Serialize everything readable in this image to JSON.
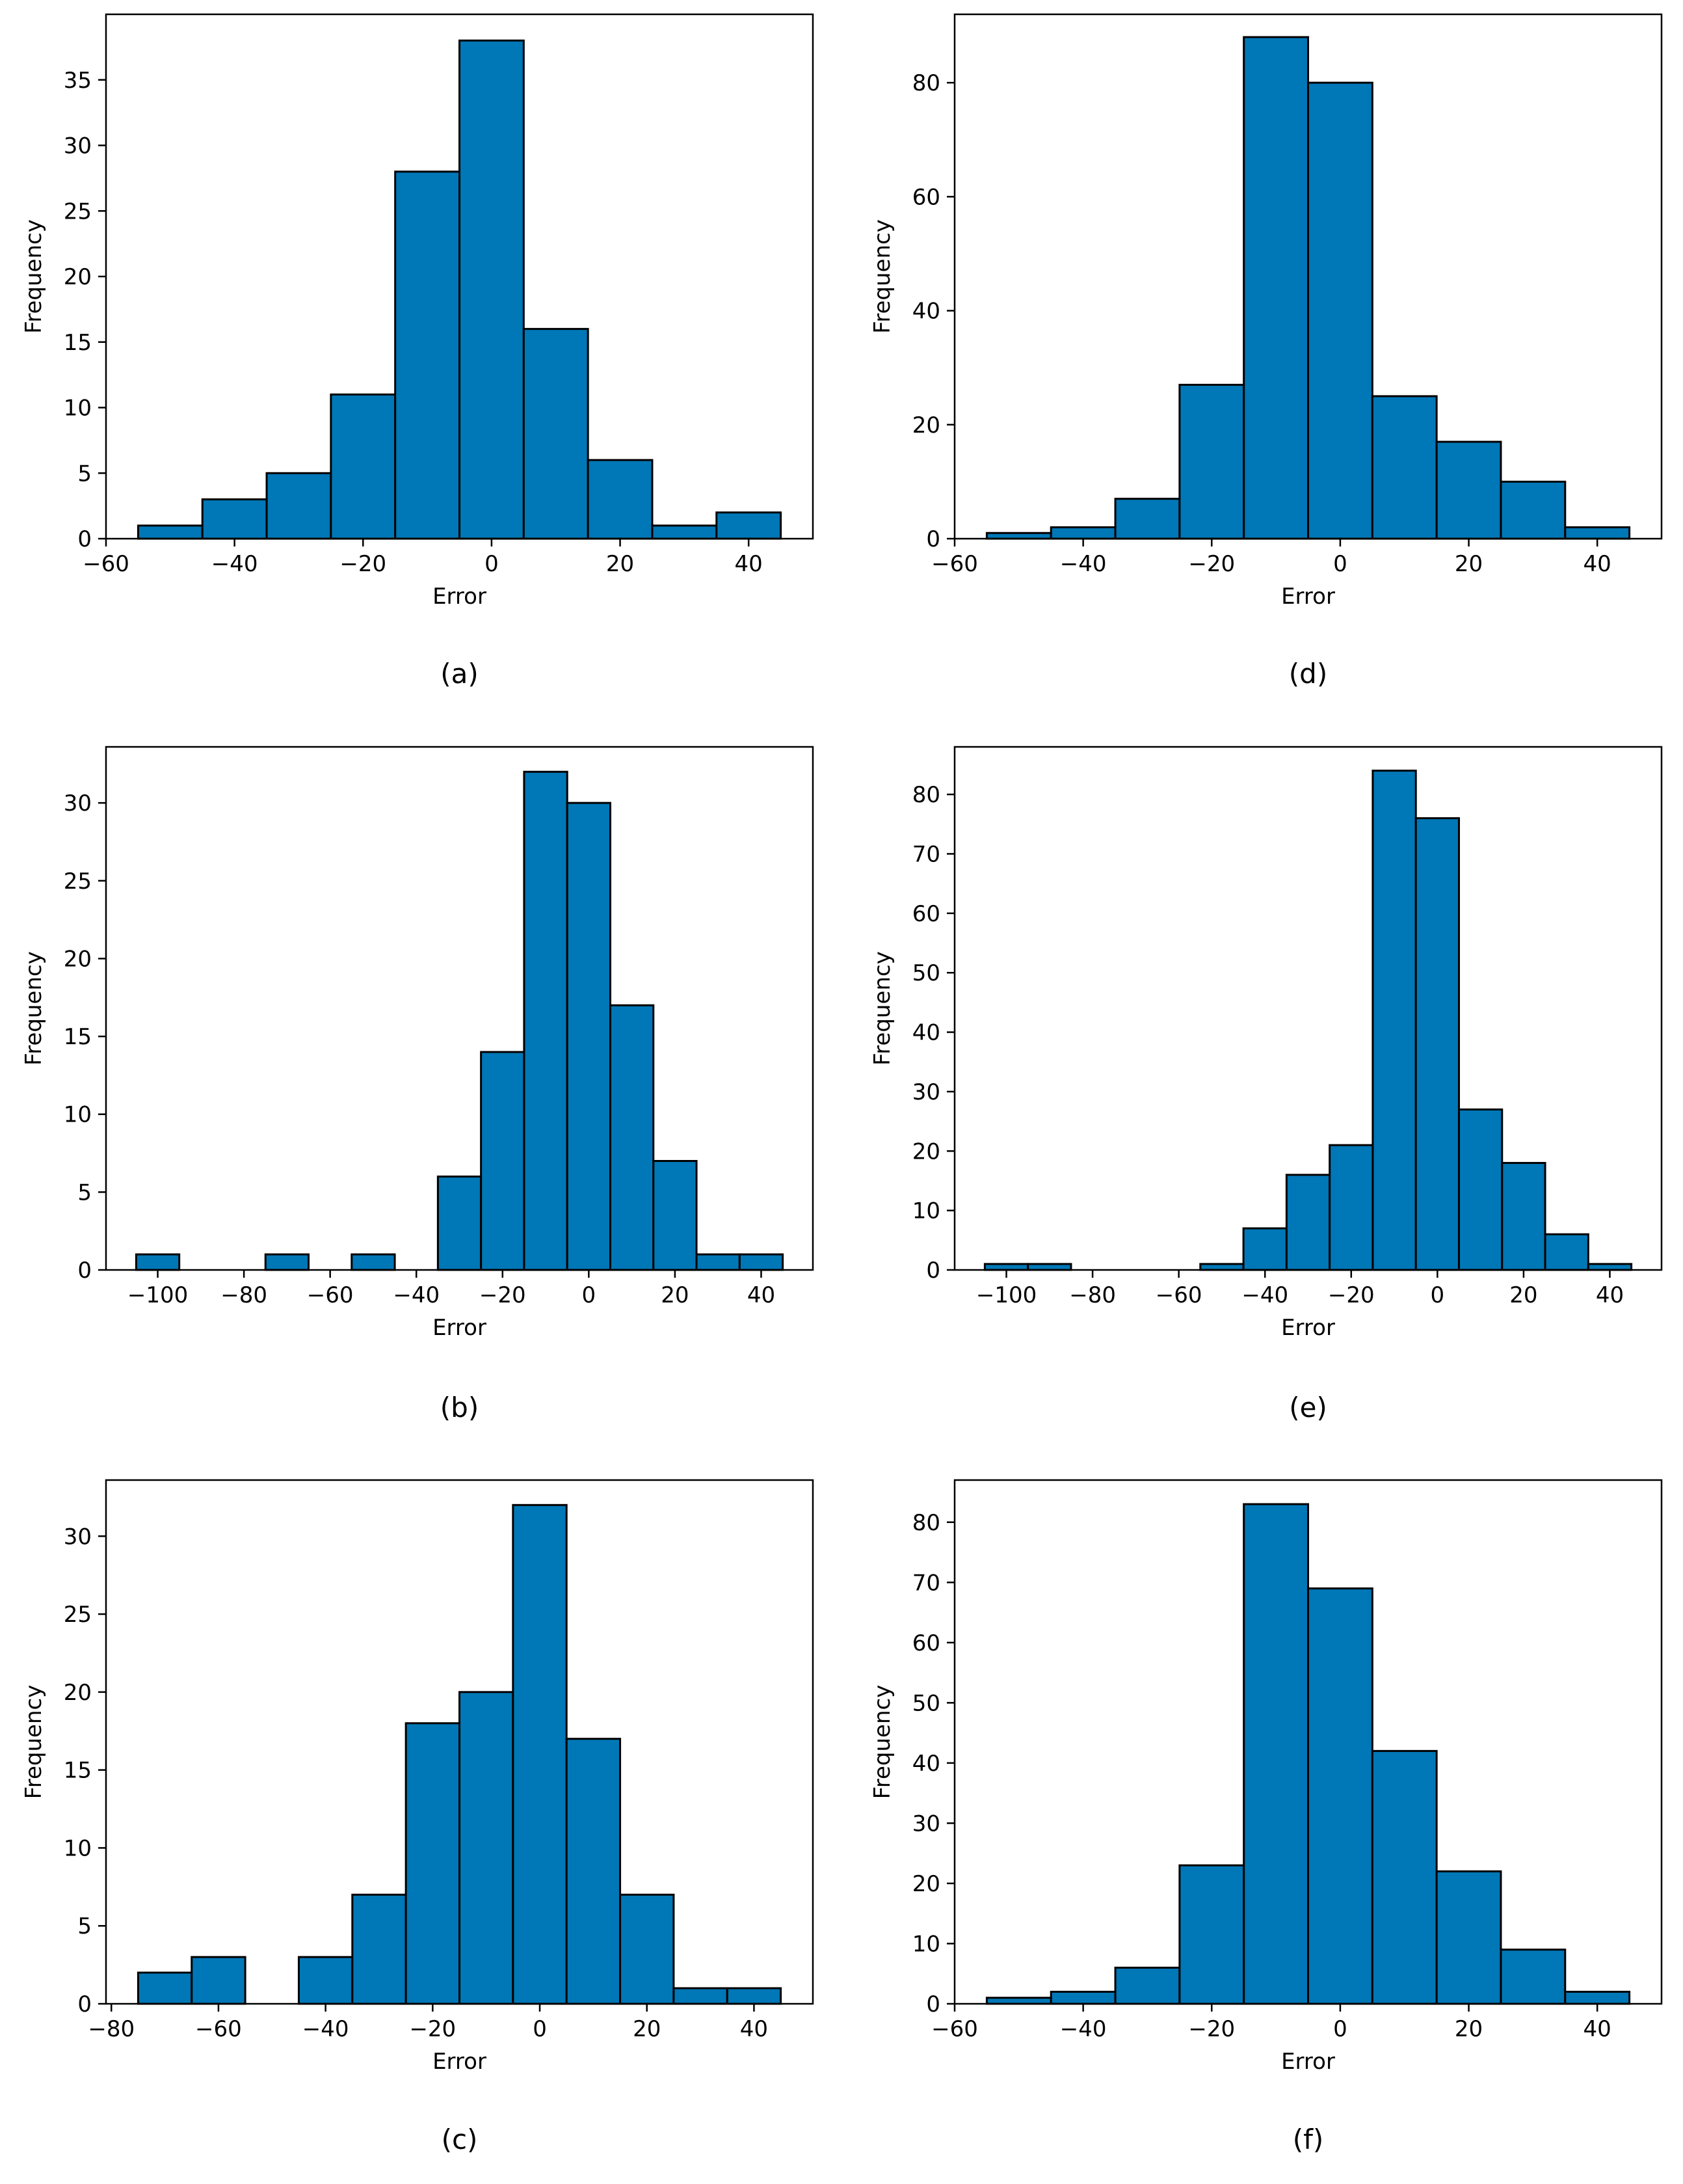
{
  "colors": {
    "bar_fill": "#0077b6",
    "bar_edge": "#000000",
    "axis": "#000000"
  },
  "chart_data": [
    {
      "panel_label": "(a)",
      "type": "bar",
      "xlabel": "Error",
      "ylabel": "Frequency",
      "xlim": [
        -60,
        50
      ],
      "ylim": [
        0,
        40
      ],
      "xticks": [
        -60,
        -40,
        -20,
        0,
        20,
        40
      ],
      "yticks": [
        0,
        5,
        10,
        15,
        20,
        25,
        30,
        35
      ],
      "bins": [
        {
          "x0": -55,
          "x1": -45,
          "count": 1
        },
        {
          "x0": -45,
          "x1": -35,
          "count": 3
        },
        {
          "x0": -35,
          "x1": -25,
          "count": 5
        },
        {
          "x0": -25,
          "x1": -15,
          "count": 11
        },
        {
          "x0": -15,
          "x1": -5,
          "count": 28
        },
        {
          "x0": -5,
          "x1": 5,
          "count": 38
        },
        {
          "x0": 5,
          "x1": 15,
          "count": 16
        },
        {
          "x0": 15,
          "x1": 25,
          "count": 6
        },
        {
          "x0": 25,
          "x1": 35,
          "count": 1
        },
        {
          "x0": 35,
          "x1": 45,
          "count": 2
        }
      ]
    },
    {
      "panel_label": "(d)",
      "type": "bar",
      "xlabel": "Error",
      "ylabel": "Frequency",
      "xlim": [
        -60,
        50
      ],
      "ylim": [
        0,
        92
      ],
      "xticks": [
        -60,
        -40,
        -20,
        0,
        20,
        40
      ],
      "yticks": [
        0,
        20,
        40,
        60,
        80
      ],
      "bins": [
        {
          "x0": -55,
          "x1": -45,
          "count": 1
        },
        {
          "x0": -45,
          "x1": -35,
          "count": 2
        },
        {
          "x0": -35,
          "x1": -25,
          "count": 7
        },
        {
          "x0": -25,
          "x1": -15,
          "count": 27
        },
        {
          "x0": -15,
          "x1": -5,
          "count": 88
        },
        {
          "x0": -5,
          "x1": 5,
          "count": 80
        },
        {
          "x0": 5,
          "x1": 15,
          "count": 25
        },
        {
          "x0": 15,
          "x1": 25,
          "count": 17
        },
        {
          "x0": 25,
          "x1": 35,
          "count": 10
        },
        {
          "x0": 35,
          "x1": 45,
          "count": 2
        }
      ]
    },
    {
      "panel_label": "(b)",
      "type": "bar",
      "xlabel": "Error",
      "ylabel": "Frequency",
      "xlim": [
        -112,
        52
      ],
      "ylim": [
        0,
        33.6
      ],
      "xticks": [
        -100,
        -80,
        -60,
        -40,
        -20,
        0,
        20,
        40
      ],
      "yticks": [
        0,
        5,
        10,
        15,
        20,
        25,
        30
      ],
      "bins": [
        {
          "x0": -105,
          "x1": -95,
          "count": 1
        },
        {
          "x0": -95,
          "x1": -85,
          "count": 0
        },
        {
          "x0": -85,
          "x1": -75,
          "count": 0
        },
        {
          "x0": -75,
          "x1": -65,
          "count": 1
        },
        {
          "x0": -65,
          "x1": -55,
          "count": 0
        },
        {
          "x0": -55,
          "x1": -45,
          "count": 1
        },
        {
          "x0": -45,
          "x1": -35,
          "count": 0
        },
        {
          "x0": -35,
          "x1": -25,
          "count": 6
        },
        {
          "x0": -25,
          "x1": -15,
          "count": 14
        },
        {
          "x0": -15,
          "x1": -5,
          "count": 32
        },
        {
          "x0": -5,
          "x1": 5,
          "count": 30
        },
        {
          "x0": 5,
          "x1": 15,
          "count": 17
        },
        {
          "x0": 15,
          "x1": 25,
          "count": 7
        },
        {
          "x0": 25,
          "x1": 35,
          "count": 1
        },
        {
          "x0": 35,
          "x1": 45,
          "count": 1
        }
      ]
    },
    {
      "panel_label": "(e)",
      "type": "bar",
      "xlabel": "Error",
      "ylabel": "Frequency",
      "xlim": [
        -112,
        52
      ],
      "ylim": [
        0,
        88
      ],
      "xticks": [
        -100,
        -80,
        -60,
        -40,
        -20,
        0,
        20,
        40
      ],
      "yticks": [
        0,
        10,
        20,
        30,
        40,
        50,
        60,
        70,
        80
      ],
      "bins": [
        {
          "x0": -105,
          "x1": -95,
          "count": 1
        },
        {
          "x0": -95,
          "x1": -85,
          "count": 1
        },
        {
          "x0": -85,
          "x1": -75,
          "count": 0
        },
        {
          "x0": -75,
          "x1": -65,
          "count": 0
        },
        {
          "x0": -65,
          "x1": -55,
          "count": 0
        },
        {
          "x0": -55,
          "x1": -45,
          "count": 1
        },
        {
          "x0": -45,
          "x1": -35,
          "count": 7
        },
        {
          "x0": -35,
          "x1": -25,
          "count": 16
        },
        {
          "x0": -25,
          "x1": -15,
          "count": 21
        },
        {
          "x0": -15,
          "x1": -5,
          "count": 84
        },
        {
          "x0": -5,
          "x1": 5,
          "count": 76
        },
        {
          "x0": 5,
          "x1": 15,
          "count": 27
        },
        {
          "x0": 15,
          "x1": 25,
          "count": 18
        },
        {
          "x0": 25,
          "x1": 35,
          "count": 6
        },
        {
          "x0": 35,
          "x1": 45,
          "count": 1
        }
      ]
    },
    {
      "panel_label": "(c)",
      "type": "bar",
      "xlabel": "Error",
      "ylabel": "Frequency",
      "xlim": [
        -81,
        51
      ],
      "ylim": [
        0,
        33.6
      ],
      "xticks": [
        -80,
        -60,
        -40,
        -20,
        0,
        20,
        40
      ],
      "yticks": [
        0,
        5,
        10,
        15,
        20,
        25,
        30
      ],
      "bins": [
        {
          "x0": -75,
          "x1": -65,
          "count": 2
        },
        {
          "x0": -65,
          "x1": -55,
          "count": 3
        },
        {
          "x0": -55,
          "x1": -45,
          "count": 0
        },
        {
          "x0": -45,
          "x1": -35,
          "count": 3
        },
        {
          "x0": -35,
          "x1": -25,
          "count": 7
        },
        {
          "x0": -25,
          "x1": -15,
          "count": 18
        },
        {
          "x0": -15,
          "x1": -5,
          "count": 20
        },
        {
          "x0": -5,
          "x1": 5,
          "count": 32
        },
        {
          "x0": 5,
          "x1": 15,
          "count": 17
        },
        {
          "x0": 15,
          "x1": 25,
          "count": 7
        },
        {
          "x0": 25,
          "x1": 35,
          "count": 1
        },
        {
          "x0": 35,
          "x1": 45,
          "count": 1
        }
      ]
    },
    {
      "panel_label": "(f)",
      "type": "bar",
      "xlabel": "Error",
      "ylabel": "Frequency",
      "xlim": [
        -60,
        50
      ],
      "ylim": [
        0,
        87
      ],
      "xticks": [
        -60,
        -40,
        -20,
        0,
        20,
        40
      ],
      "yticks": [
        0,
        10,
        20,
        30,
        40,
        50,
        60,
        70,
        80
      ],
      "bins": [
        {
          "x0": -55,
          "x1": -45,
          "count": 1
        },
        {
          "x0": -45,
          "x1": -35,
          "count": 2
        },
        {
          "x0": -35,
          "x1": -25,
          "count": 6
        },
        {
          "x0": -25,
          "x1": -15,
          "count": 23
        },
        {
          "x0": -15,
          "x1": -5,
          "count": 83
        },
        {
          "x0": -5,
          "x1": 5,
          "count": 69
        },
        {
          "x0": 5,
          "x1": 15,
          "count": 42
        },
        {
          "x0": 15,
          "x1": 25,
          "count": 22
        },
        {
          "x0": 25,
          "x1": 35,
          "count": 9
        },
        {
          "x0": 35,
          "x1": 45,
          "count": 2
        }
      ]
    }
  ]
}
